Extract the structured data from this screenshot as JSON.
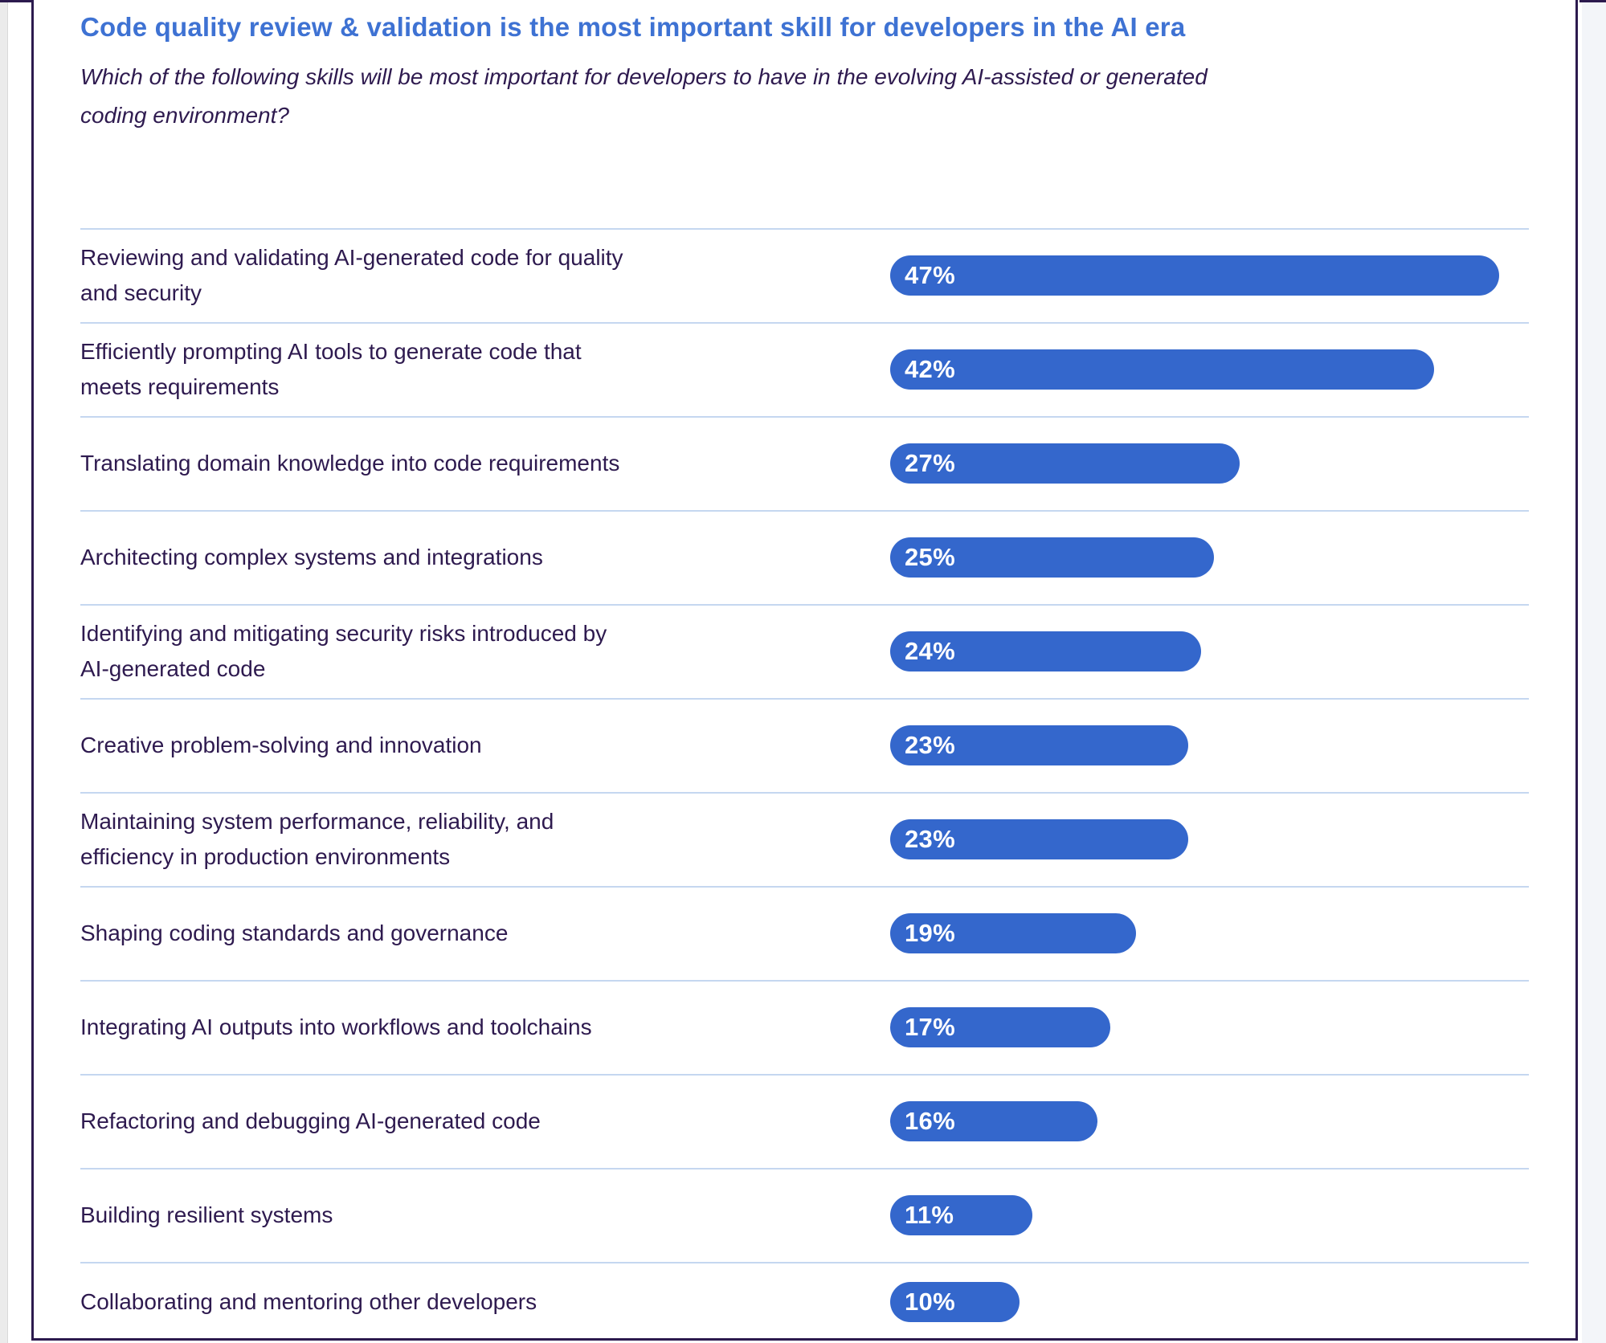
{
  "header": {
    "title": "Code quality review & validation is the most important skill for developers in the AI era",
    "question_lines": [
      "Which of the following skills will be most important for developers to have in the evolving AI-assisted or generated",
      "coding environment?"
    ]
  },
  "colors": {
    "title_blue": "#3e72d3",
    "bar_blue": "#3467cc",
    "text_dark": "#2e1a4f",
    "divider_light_blue": "#c5d7f0",
    "card_border_dark": "#2c1a4e"
  },
  "chart_data": {
    "type": "bar",
    "orientation": "horizontal",
    "title": "Code quality review & validation is the most important skill for developers in the AI era",
    "subtitle": "Which of the following skills will be most important for developers to have in the evolving AI-assisted or generated coding environment?",
    "xlabel": "",
    "ylabel": "",
    "unit": "%",
    "xlim": [
      0,
      49.3
    ],
    "grid": false,
    "legend": false,
    "bar_color": "#3467cc",
    "categories": [
      "Reviewing and validating AI-generated code for quality and security",
      "Efficiently prompting AI tools to generate code that meets requirements",
      "Translating domain knowledge into code requirements",
      "Architecting complex systems and integrations",
      "Identifying and mitigating security risks introduced by AI-generated code",
      "Creative problem-solving and innovation",
      "Maintaining system performance, reliability, and efficiency in production environments",
      "Shaping coding standards and governance",
      "Integrating AI outputs into workflows and toolchains",
      "Refactoring and debugging AI-generated code",
      "Building resilient systems",
      "Collaborating and mentoring other developers"
    ],
    "values": [
      47,
      42,
      27,
      25,
      24,
      23,
      23,
      19,
      17,
      16,
      11,
      10
    ],
    "data_labels": [
      "47%",
      "42%",
      "27%",
      "25%",
      "24%",
      "23%",
      "23%",
      "19%",
      "17%",
      "16%",
      "11%",
      "10%"
    ],
    "rows": [
      {
        "lines": [
          "Reviewing and validating AI-generated code for quality",
          "and security"
        ],
        "value": 47,
        "label": "47%"
      },
      {
        "lines": [
          "Efficiently prompting AI tools to generate code that",
          "meets requirements"
        ],
        "value": 42,
        "label": "42%"
      },
      {
        "lines": [
          "Translating domain knowledge into code requirements"
        ],
        "value": 27,
        "label": "27%"
      },
      {
        "lines": [
          "Architecting complex systems and integrations"
        ],
        "value": 25,
        "label": "25%"
      },
      {
        "lines": [
          "Identifying and mitigating security risks introduced by",
          "AI-generated code"
        ],
        "value": 24,
        "label": "24%"
      },
      {
        "lines": [
          "Creative problem-solving and innovation"
        ],
        "value": 23,
        "label": "23%"
      },
      {
        "lines": [
          "Maintaining system performance, reliability, and",
          "efficiency in production environments"
        ],
        "value": 23,
        "label": "23%"
      },
      {
        "lines": [
          "Shaping coding standards and governance"
        ],
        "value": 19,
        "label": "19%"
      },
      {
        "lines": [
          "Integrating AI outputs into workflows and toolchains"
        ],
        "value": 17,
        "label": "17%"
      },
      {
        "lines": [
          "Refactoring and debugging AI-generated code"
        ],
        "value": 16,
        "label": "16%"
      },
      {
        "lines": [
          "Building resilient systems"
        ],
        "value": 11,
        "label": "11%"
      },
      {
        "lines": [
          "Collaborating and mentoring other developers"
        ],
        "value": 10,
        "label": "10%"
      }
    ]
  }
}
